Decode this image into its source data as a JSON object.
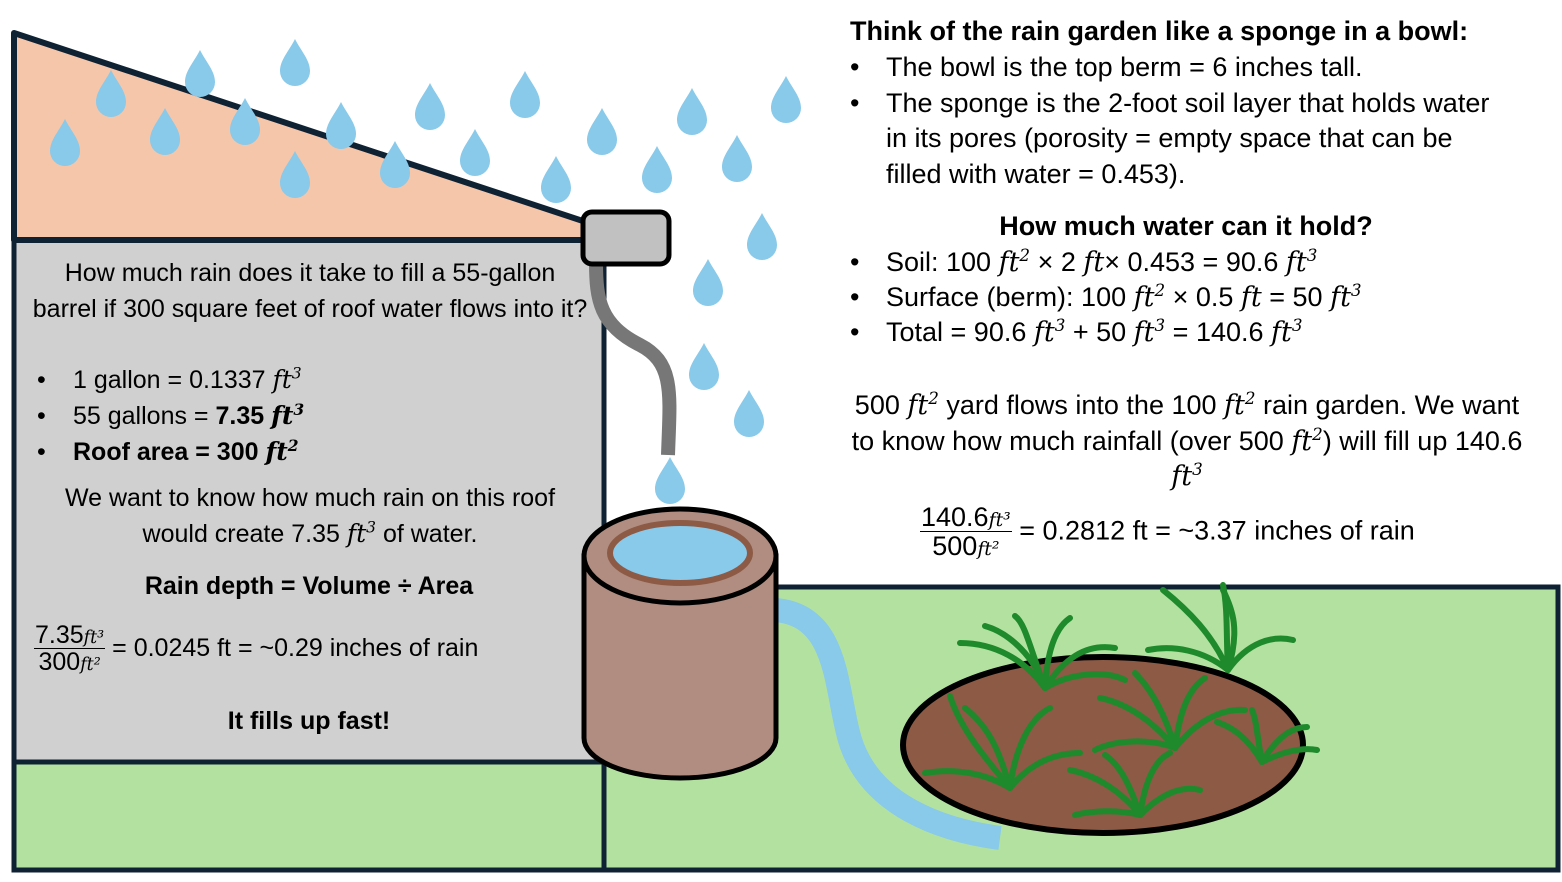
{
  "colors": {
    "roof": "#f5c6aa",
    "outline": "#0f2233",
    "grass": "#b3e2a0",
    "panel": "#d0d0d0",
    "drop": "#89c9e9",
    "barrel": "#b08d80",
    "soil": "#8c5a45",
    "plant": "#1f8a2c",
    "gutter": "#c1c1c1",
    "downspout": "#777777"
  },
  "icons": [
    "raindrop-icon",
    "rain-barrel-icon",
    "gutter-icon",
    "downspout-icon",
    "plant-icon",
    "rain-garden-icon",
    "stream-icon"
  ],
  "left_panel": {
    "question": "How much rain does it take to fill a 55-gallon barrel if 300 square feet of roof water flows into it?",
    "bullet1_text": "1 gallon = 0.1337 ",
    "bullet2_text": "55 gallons = ",
    "bullet2_bold": "7.35 ",
    "bullet3_bold": "Roof area = 300 ",
    "unit_ft": "ft",
    "exp3": "3",
    "exp2": "2",
    "goal_before": "We want to know how much rain on this roof would create 7.35 ",
    "goal_after": " of water.",
    "formula_title": "Rain depth = Volume ÷ Area",
    "frac_num": "7.35",
    "frac_den": "300",
    "frac_unit_num": "ft³",
    "frac_unit_den": "ft²",
    "result": "= 0.0245 ft = ~0.29 inches of rain",
    "conclusion": "It fills up fast!"
  },
  "right_panel": {
    "heading": "Think of the rain garden like a sponge in a bowl:",
    "bullet1": "The bowl is the top berm = 6 inches tall.",
    "bullet2": "The sponge is the 2-foot soil layer that holds water in its pores (porosity = empty space that can be filled with water = 0.453).",
    "subheading": "How much water can it hold?",
    "soil_a": "Soil: 100 ",
    "soil_b": " × 2 ",
    "soil_c": "× 0.453 = 90.6 ",
    "surface_a": "Surface (berm): 100 ",
    "surface_b": " × 0.5 ",
    "surface_c": " = 50 ",
    "total_a": "Total = 90.6 ",
    "total_b": " + 50 ",
    "total_c": " = 140.6 ",
    "unit_ft": "ft",
    "exp2": "2",
    "exp3": "3",
    "para_a": "500 ",
    "para_b": " yard flows into the 100 ",
    "para_c": " rain garden. We want to know how much rainfall (over 500 ",
    "para_d": ") will fill up 140.6 ",
    "frac_num": "140.6",
    "frac_den": "500",
    "frac_unit_num": "ft³",
    "frac_unit_den": "ft²",
    "result": "= 0.2812 ft = ~3.37 inches of rain"
  }
}
